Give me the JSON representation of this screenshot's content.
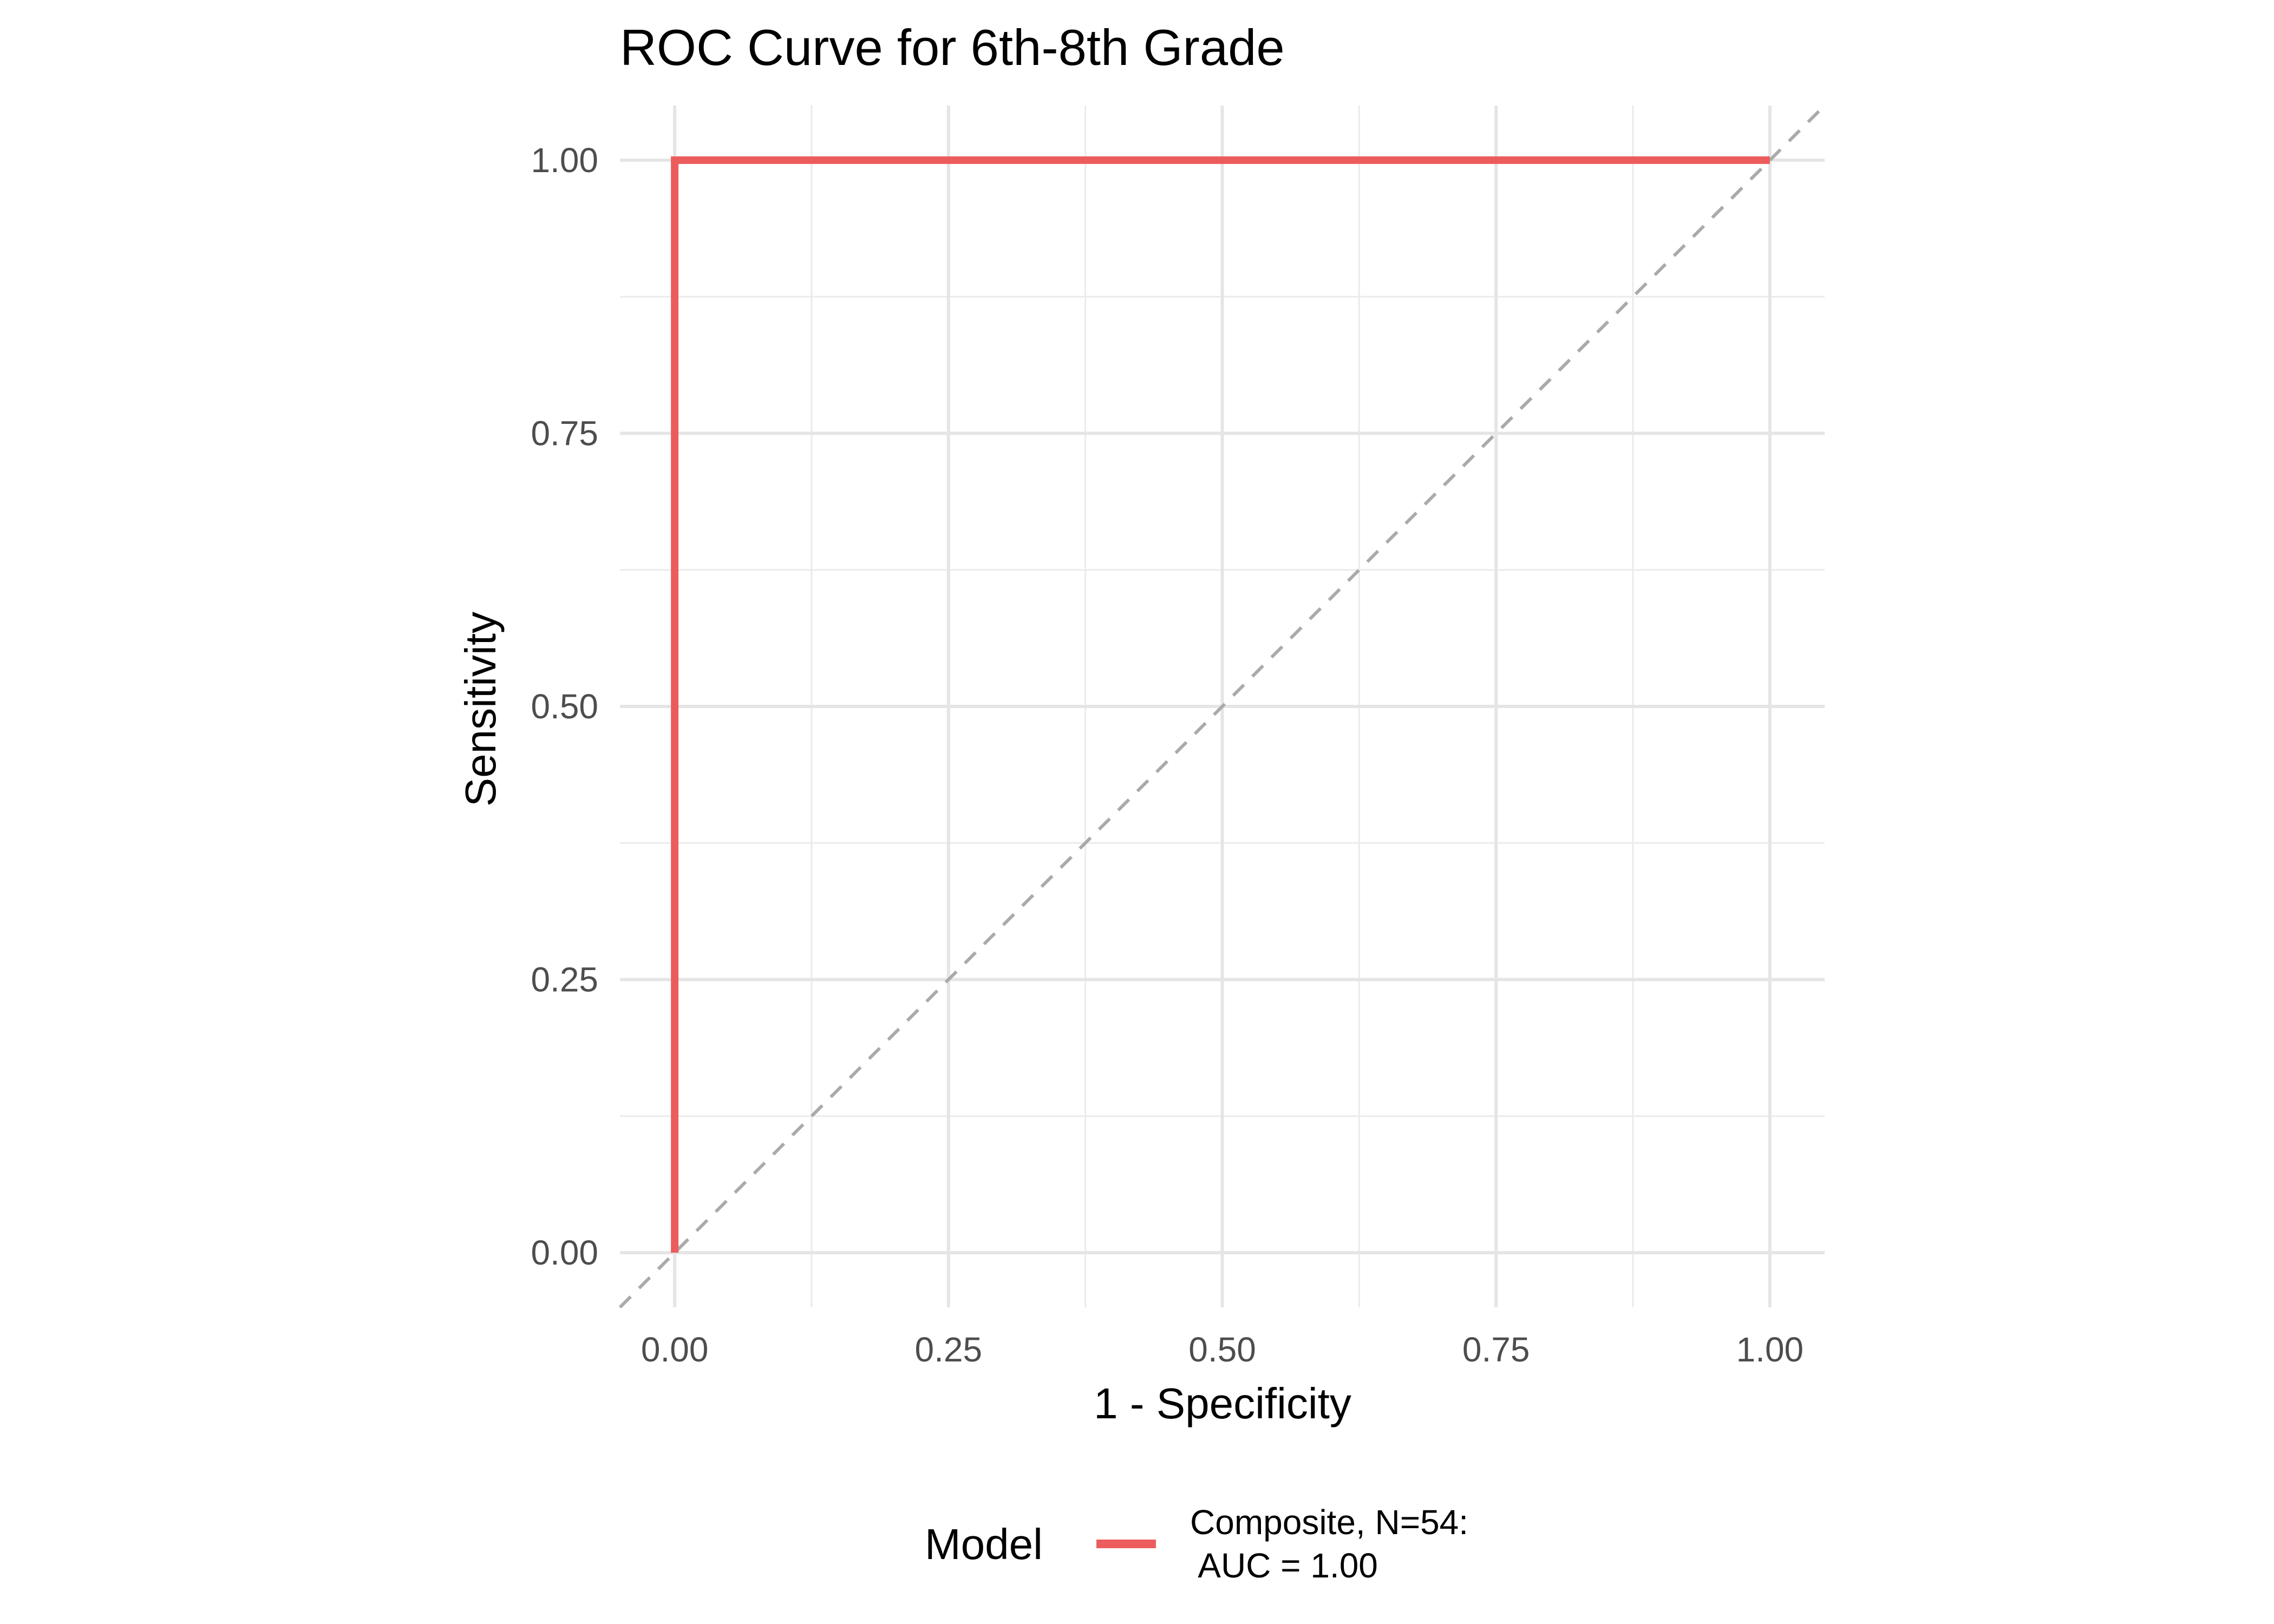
{
  "chart_data": {
    "type": "line",
    "title": "ROC Curve for 6th-8th Grade",
    "xlabel": "1 - Specificity",
    "ylabel": "Sensitivity",
    "xlim": [
      -0.05,
      1.05
    ],
    "ylim": [
      -0.05,
      1.05
    ],
    "x_ticks": [
      0,
      0.25,
      0.5,
      0.75,
      1
    ],
    "y_ticks": [
      0,
      0.25,
      0.5,
      0.75,
      1
    ],
    "x_tick_labels": [
      "0.00",
      "0.25",
      "0.50",
      "0.75",
      "1.00"
    ],
    "y_tick_labels": [
      "0.00",
      "0.25",
      "0.50",
      "0.75",
      "1.00"
    ],
    "grid": true,
    "series": [
      {
        "name": "Composite, N=54:\n AUC = 1.00",
        "color": "#EC5C5C",
        "x": [
          0,
          0,
          1
        ],
        "y": [
          0,
          1,
          1
        ]
      }
    ],
    "reference_line": {
      "style": "dashed",
      "color": "#AAAAAA",
      "x": [
        -0.05,
        1.05
      ],
      "y": [
        -0.05,
        1.05
      ]
    },
    "legend": {
      "title": "Model",
      "position": "bottom",
      "labels": [
        "Composite, N=54:",
        " AUC = 1.00"
      ]
    }
  }
}
